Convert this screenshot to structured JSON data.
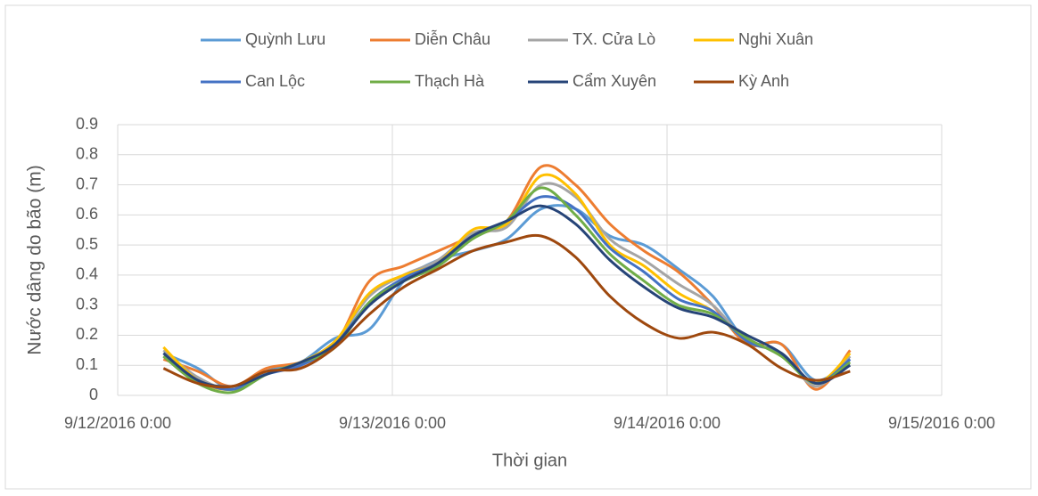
{
  "chart_data": {
    "type": "line",
    "y_label": "Nước dâng do bão (m)",
    "x_label": "Thời gian",
    "x": [
      "9/12/2016 4:00",
      "9/12/2016 7:00",
      "9/12/2016 10:00",
      "9/12/2016 13:00",
      "9/12/2016 16:00",
      "9/12/2016 19:00",
      "9/12/2016 22:00",
      "9/13/2016 1:00",
      "9/13/2016 4:00",
      "9/13/2016 7:00",
      "9/13/2016 10:00",
      "9/13/2016 13:00",
      "9/13/2016 16:00",
      "9/13/2016 19:00",
      "9/13/2016 22:00",
      "9/14/2016 1:00",
      "9/14/2016 4:00",
      "9/14/2016 7:00",
      "9/14/2016 10:00",
      "9/14/2016 13:00",
      "9/14/2016 16:00"
    ],
    "series": [
      {
        "name": "Quỳnh Lưu",
        "color": "#5b9bd5",
        "values": [
          0.14,
          0.09,
          0.02,
          0.08,
          0.11,
          0.19,
          0.22,
          0.38,
          0.45,
          0.48,
          0.52,
          0.62,
          0.62,
          0.53,
          0.5,
          0.42,
          0.33,
          0.18,
          0.17,
          0.05,
          0.12
        ]
      },
      {
        "name": "Diễn Châu",
        "color": "#ed7d31",
        "values": [
          0.12,
          0.08,
          0.03,
          0.09,
          0.11,
          0.17,
          0.38,
          0.43,
          0.48,
          0.53,
          0.58,
          0.76,
          0.7,
          0.57,
          0.48,
          0.41,
          0.3,
          0.17,
          0.17,
          0.02,
          0.15
        ]
      },
      {
        "name": "TX. Cửa Lò",
        "color": "#a5a5a5",
        "values": [
          0.15,
          0.06,
          0.02,
          0.07,
          0.11,
          0.18,
          0.33,
          0.4,
          0.45,
          0.54,
          0.56,
          0.7,
          0.66,
          0.52,
          0.45,
          0.37,
          0.3,
          0.18,
          0.14,
          0.03,
          0.13
        ]
      },
      {
        "name": "Nghi Xuân",
        "color": "#ffc000",
        "values": [
          0.16,
          0.05,
          0.02,
          0.07,
          0.11,
          0.18,
          0.34,
          0.4,
          0.44,
          0.55,
          0.57,
          0.73,
          0.67,
          0.5,
          0.43,
          0.34,
          0.28,
          0.18,
          0.14,
          0.04,
          0.14
        ]
      },
      {
        "name": "Can Lộc",
        "color": "#4472c4",
        "values": [
          0.13,
          0.05,
          0.02,
          0.07,
          0.1,
          0.17,
          0.31,
          0.39,
          0.44,
          0.53,
          0.58,
          0.66,
          0.62,
          0.49,
          0.41,
          0.32,
          0.28,
          0.18,
          0.14,
          0.04,
          0.12
        ]
      },
      {
        "name": "Thạch Hà",
        "color": "#70ad47",
        "values": [
          0.13,
          0.04,
          0.01,
          0.07,
          0.11,
          0.16,
          0.31,
          0.38,
          0.43,
          0.52,
          0.58,
          0.69,
          0.6,
          0.47,
          0.38,
          0.3,
          0.27,
          0.19,
          0.13,
          0.04,
          0.11
        ]
      },
      {
        "name": "Cẩm Xuyên",
        "color": "#264478",
        "values": [
          0.14,
          0.05,
          0.03,
          0.07,
          0.11,
          0.17,
          0.3,
          0.38,
          0.44,
          0.53,
          0.58,
          0.63,
          0.57,
          0.45,
          0.36,
          0.29,
          0.26,
          0.2,
          0.14,
          0.04,
          0.1
        ]
      },
      {
        "name": "Kỳ Anh",
        "color": "#9e480e",
        "values": [
          0.09,
          0.04,
          0.03,
          0.08,
          0.09,
          0.16,
          0.27,
          0.36,
          0.42,
          0.48,
          0.51,
          0.53,
          0.46,
          0.33,
          0.24,
          0.19,
          0.21,
          0.17,
          0.09,
          0.05,
          0.08
        ]
      }
    ],
    "xlim": [
      "9/12/2016 0:00",
      "9/15/2016 0:00"
    ],
    "xticks": [
      "9/12/2016 0:00",
      "9/13/2016 0:00",
      "9/14/2016 0:00",
      "9/15/2016 0:00"
    ],
    "ylim": [
      0,
      0.9
    ],
    "yticks": [
      0,
      0.1,
      0.2,
      0.3,
      0.4,
      0.5,
      0.6,
      0.7,
      0.8,
      0.9
    ],
    "grid": true,
    "legend": "top"
  }
}
